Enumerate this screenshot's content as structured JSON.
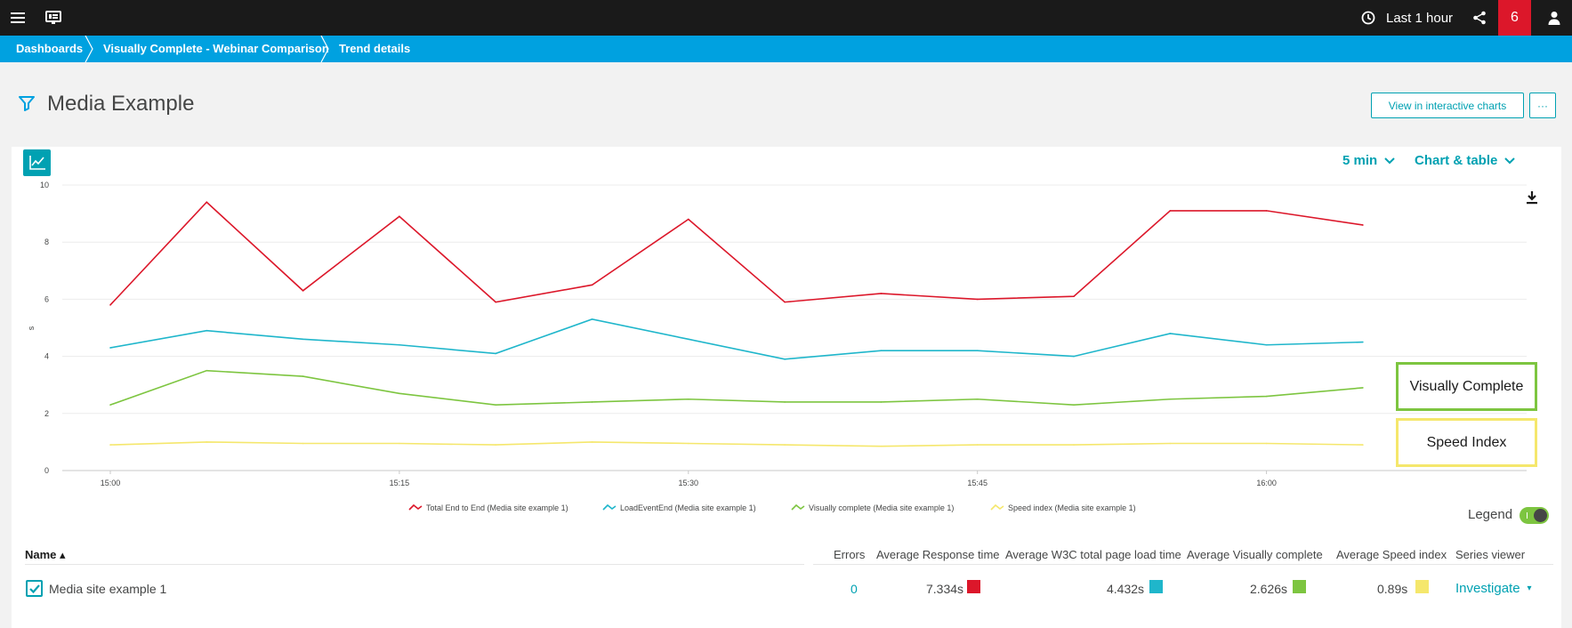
{
  "topbar": {
    "menu_icon": "hamburger-icon",
    "dashboard_icon": "dashboard-icon",
    "timeframe_label": "Last 1 hour",
    "problems_count": "6",
    "share_icon": "share-icon",
    "user_icon": "user-icon"
  },
  "breadcrumb": [
    {
      "label": "Dashboards"
    },
    {
      "label": "Visually Complete - Webinar Comparison"
    },
    {
      "label": "Trend details"
    }
  ],
  "page": {
    "title": "Media Example",
    "view_interactive_label": "View in interactive charts",
    "more_label": "···"
  },
  "controls": {
    "resolution_label": "5 min",
    "view_mode_label": "Chart & table",
    "legend_label": "Legend",
    "legend_on": true
  },
  "colors": {
    "total": "#dc172a",
    "load": "#1fb6cb",
    "visual": "#7dc540",
    "speed": "#f5e76c",
    "accent": "#00a1b2",
    "brand_blue": "#00a1e0"
  },
  "chart_data": {
    "type": "line",
    "ylabel": "s",
    "ylim": [
      0,
      10
    ],
    "yticks": [
      0,
      2,
      4,
      6,
      8,
      10
    ],
    "x": [
      "15:00",
      "15:05",
      "15:10",
      "15:15",
      "15:20",
      "15:25",
      "15:30",
      "15:35",
      "15:40",
      "15:45",
      "15:50",
      "15:55",
      "16:00",
      "16:05"
    ],
    "xtick_labels": [
      "15:00",
      "15:15",
      "15:30",
      "15:45",
      "16:00"
    ],
    "series": [
      {
        "name": "Total End to End (Media site example 1)",
        "color": "#dc172a",
        "values": [
          5.8,
          9.4,
          6.3,
          8.9,
          5.9,
          6.5,
          8.8,
          5.9,
          6.2,
          6.0,
          6.1,
          9.1,
          9.1,
          8.6
        ]
      },
      {
        "name": "LoadEventEnd (Media site example 1)",
        "color": "#1fb6cb",
        "values": [
          4.3,
          4.9,
          4.6,
          4.4,
          4.1,
          5.3,
          4.6,
          3.9,
          4.2,
          4.2,
          4.0,
          4.8,
          4.4,
          4.5
        ]
      },
      {
        "name": "Visually complete (Media site example 1)",
        "color": "#7dc540",
        "values": [
          2.3,
          3.5,
          3.3,
          2.7,
          2.3,
          2.4,
          2.5,
          2.4,
          2.4,
          2.5,
          2.3,
          2.5,
          2.6,
          2.9
        ]
      },
      {
        "name": "Speed index (Media site example 1)",
        "color": "#f5e76c",
        "values": [
          0.9,
          1.0,
          0.95,
          0.95,
          0.9,
          1.0,
          0.95,
          0.9,
          0.85,
          0.9,
          0.9,
          0.95,
          0.95,
          0.9
        ]
      }
    ]
  },
  "callouts": {
    "visually_complete": "Visually Complete",
    "speed_index": "Speed Index"
  },
  "table": {
    "headers": {
      "name": "Name ▴",
      "errors": "Errors",
      "avg_response": "Average Response time",
      "avg_w3c": "Average W3C total page load time",
      "avg_visual": "Average Visually complete",
      "avg_speed": "Average Speed index",
      "series_viewer": "Series viewer"
    },
    "rows": [
      {
        "name": "Media site example 1",
        "errors": "0",
        "avg_response": "7.334s",
        "avg_w3c": "4.432s",
        "avg_visual": "2.626s",
        "avg_speed": "0.89s",
        "action": "Investigate",
        "caret": "▾"
      }
    ]
  }
}
